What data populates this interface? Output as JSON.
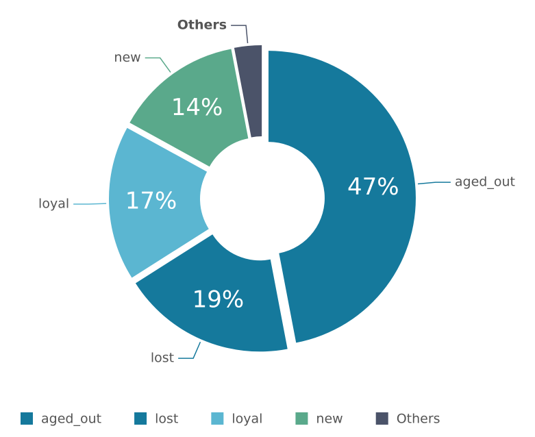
{
  "chart_data": {
    "type": "donut",
    "categories": [
      "aged_out",
      "lost",
      "loyal",
      "new",
      "Others"
    ],
    "values": [
      47,
      19,
      17,
      14,
      3
    ],
    "value_labels": [
      "47%",
      "19%",
      "17%",
      "14%",
      null
    ],
    "colors": [
      "#15799c",
      "#15799c",
      "#5bb6d1",
      "#5aa98b",
      "#4b5369"
    ],
    "legend": "bottom"
  }
}
